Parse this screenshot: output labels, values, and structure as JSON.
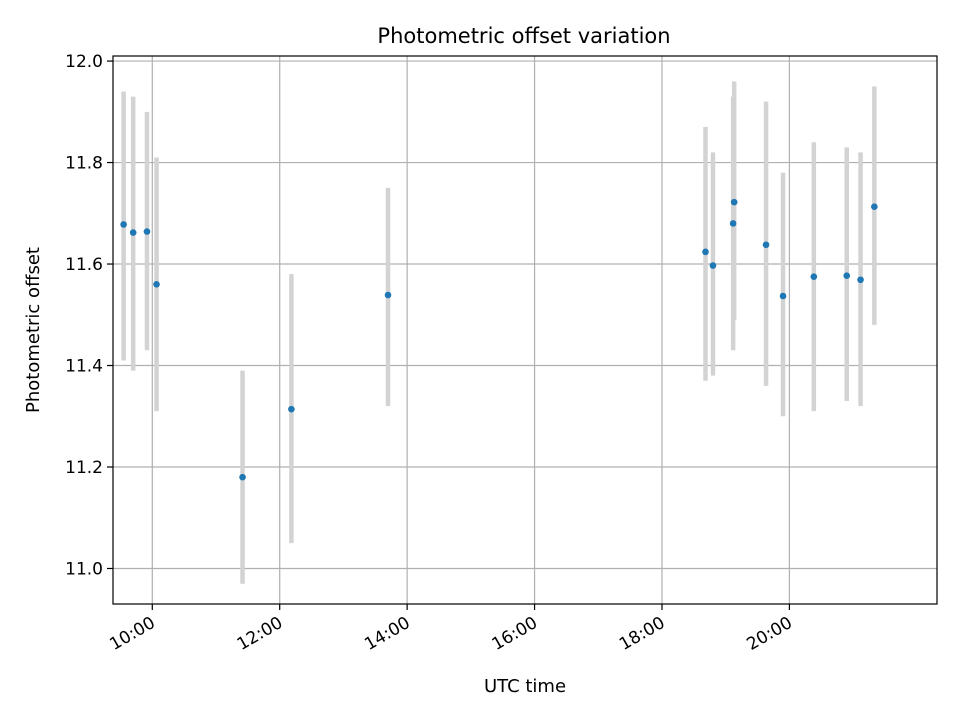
{
  "chart_data": {
    "type": "scatter",
    "title": "Photometric offset variation",
    "xlabel": "UTC time",
    "ylabel": "Photometric offset",
    "x_ticks": [
      "10:00",
      "12:00",
      "14:00",
      "16:00",
      "18:00",
      "20:00"
    ],
    "y_ticks": [
      "11.0",
      "11.2",
      "11.4",
      "11.6",
      "11.8",
      "12.0"
    ],
    "xlim": [
      "09:23",
      "22:19"
    ],
    "ylim": [
      10.93,
      12.01
    ],
    "grid": true,
    "colors": {
      "points": "#1f77b4",
      "error_bars": "#d3d3d3",
      "grid": "#b0b0b0"
    },
    "points": [
      {
        "time": "09:33",
        "y": 11.678,
        "err_low": 11.41,
        "err_high": 11.94
      },
      {
        "time": "09:42",
        "y": 11.662,
        "err_low": 11.39,
        "err_high": 11.93
      },
      {
        "time": "09:55",
        "y": 11.664,
        "err_low": 11.43,
        "err_high": 11.9
      },
      {
        "time": "10:04",
        "y": 11.56,
        "err_low": 11.31,
        "err_high": 11.81
      },
      {
        "time": "11:25",
        "y": 11.18,
        "err_low": 10.97,
        "err_high": 11.39
      },
      {
        "time": "12:11",
        "y": 11.314,
        "err_low": 11.05,
        "err_high": 11.58
      },
      {
        "time": "13:42",
        "y": 11.539,
        "err_low": 11.32,
        "err_high": 11.75
      },
      {
        "time": "18:41",
        "y": 11.624,
        "err_low": 11.37,
        "err_high": 11.87
      },
      {
        "time": "18:48",
        "y": 11.597,
        "err_low": 11.38,
        "err_high": 11.82
      },
      {
        "time": "19:07",
        "y": 11.68,
        "err_low": 11.43,
        "err_high": 11.93
      },
      {
        "time": "19:08",
        "y": 11.722,
        "err_low": 11.49,
        "err_high": 11.96
      },
      {
        "time": "19:38",
        "y": 11.638,
        "err_low": 11.36,
        "err_high": 11.92
      },
      {
        "time": "19:54",
        "y": 11.537,
        "err_low": 11.3,
        "err_high": 11.78
      },
      {
        "time": "20:23",
        "y": 11.575,
        "err_low": 11.31,
        "err_high": 11.84
      },
      {
        "time": "20:54",
        "y": 11.577,
        "err_low": 11.33,
        "err_high": 11.83
      },
      {
        "time": "21:07",
        "y": 11.569,
        "err_low": 11.32,
        "err_high": 11.82
      },
      {
        "time": "21:20",
        "y": 11.713,
        "err_low": 11.48,
        "err_high": 11.95
      }
    ]
  }
}
